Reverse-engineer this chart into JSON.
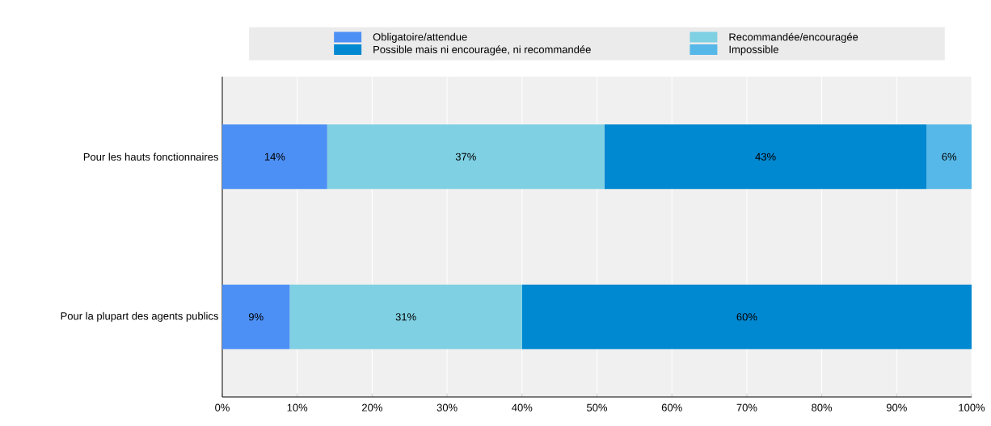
{
  "chart_data": {
    "type": "bar",
    "orientation": "horizontal",
    "stacked": true,
    "categories": [
      "Pour les hauts fonctionnaires",
      "Pour la plupart des agents publics"
    ],
    "series": [
      {
        "name": "Obligatoire/attendue",
        "color": "#4d90f5",
        "values": [
          14,
          9
        ],
        "value_labels": [
          "14%",
          "9%"
        ]
      },
      {
        "name": "Recommandée/encouragée",
        "color": "#7fd0e3",
        "values": [
          37,
          31
        ],
        "value_labels": [
          "37%",
          "31%"
        ]
      },
      {
        "name": "Possible mais ni encouragée, ni recommandée",
        "color": "#0088d1",
        "values": [
          43,
          60
        ],
        "value_labels": [
          "43%",
          "60%"
        ]
      },
      {
        "name": "Impossible",
        "color": "#56b8e8",
        "values": [
          6,
          null
        ],
        "value_labels": [
          "6%",
          null
        ]
      }
    ],
    "xlim": [
      0,
      100
    ],
    "xticks": [
      {
        "value": 0,
        "label": "0%"
      },
      {
        "value": 10,
        "label": "10%"
      },
      {
        "value": 20,
        "label": "20%"
      },
      {
        "value": 30,
        "label": "30%"
      },
      {
        "value": 40,
        "label": "40%"
      },
      {
        "value": 50,
        "label": "50%"
      },
      {
        "value": 60,
        "label": "60%"
      },
      {
        "value": 70,
        "label": "70%"
      },
      {
        "value": 80,
        "label": "80%"
      },
      {
        "value": 90,
        "label": "90%"
      },
      {
        "value": 100,
        "label": "100%"
      }
    ],
    "grid": "x",
    "legend": "top"
  }
}
